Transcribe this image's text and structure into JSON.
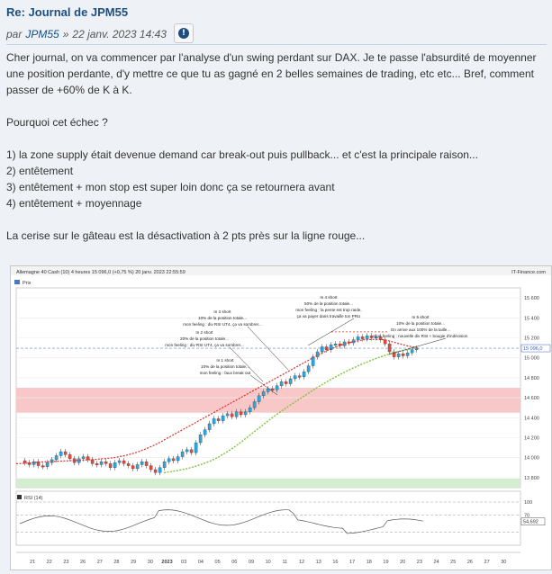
{
  "post": {
    "title": "Re: Journal de JPM55",
    "by_prefix": "par",
    "author": "JPM55",
    "date_sep": "»",
    "date": "22 janv. 2023 14:43",
    "report_icon": "info-circle-icon",
    "paragraphs": [
      "Cher journal, on va commencer par l'analyse d'un swing perdant sur DAX. Je te passe l'absurdité de moyenner une position perdante, d'y mettre ce que tu as gagné en 2 belles semaines de trading, etc etc... Bref, comment passer de +60% de K à K.",
      "Pourquoi cet échec ?",
      "1) la zone supply était devenue demand car break-out puis pullback... et c'est la principale raison...",
      "2) entêtement",
      "3) entêtement + mon stop est super loin donc ça se retournera avant",
      "4) entêtement + moyennage",
      "La cerise sur le gâteau est la désactivation à 2 pts près sur la ligne rouge..."
    ]
  },
  "chart": {
    "header_left": "Allemagne 40 Cash (10) 4 heures 15 096,0 (+0,75 %) 20 janv. 2023 22:55:59",
    "header_right": "IT-Finance.com",
    "prix_label": "Prix",
    "rsi_label": "RSI (14)",
    "price_badge": "15 096,0",
    "rsi_badge": "54,692",
    "colors": {
      "up": "#29a8e0",
      "down": "#e8483e",
      "ma_green": "#7cc43a",
      "ma_red": "#d9302a",
      "supply_zone": "#f8c8c8",
      "demand_zone": "#d4ecd0"
    },
    "annotations": [
      {
        "lines": [
          "In 1 short",
          "10% de la position totale...",
          "mon feeling : faux break out"
        ]
      },
      {
        "lines": [
          "In 2 short",
          "20% de la position totale...",
          "mon feeling : div RSI UT4, ça va sombrer..."
        ]
      },
      {
        "lines": [
          "In 3 short",
          "10% de la position totale...",
          "mon feeling : div RSI UT4, ça va sombrer..."
        ]
      },
      {
        "lines": [
          "In 4 short",
          "50% de la position totale...",
          "mon feeling : la pente est trop raide,",
          "ça va payer dans travaille ton PRU"
        ]
      },
      {
        "lines": [
          "In 5 short",
          "10% de la position totale...",
          "On arrive aux 100% de la taille...",
          "mon feeling : nouvelle div RSI + bougie d'indécision"
        ]
      }
    ]
  },
  "chart_data": {
    "type": "candlestick",
    "title": "Allemagne 40 Cash (10) 4 heures",
    "ylim": [
      13700,
      15700
    ],
    "y_ticks": [
      13800,
      14000,
      14200,
      14400,
      14600,
      14800,
      15000,
      15200,
      15400,
      15600
    ],
    "x_ticks": [
      "21",
      "22",
      "23",
      "26",
      "27",
      "28",
      "29",
      "30",
      "2023",
      "03",
      "04",
      "05",
      "06",
      "09",
      "10",
      "11",
      "12",
      "13",
      "16",
      "17",
      "18",
      "19",
      "20",
      "23",
      "24",
      "25",
      "26",
      "27",
      "30"
    ],
    "candles": [
      [
        13970,
        13950
      ],
      [
        13950,
        13930
      ],
      [
        13930,
        13960
      ],
      [
        13960,
        13920
      ],
      [
        13920,
        13910
      ],
      [
        13910,
        13950
      ],
      [
        13950,
        13980
      ],
      [
        13980,
        14020
      ],
      [
        14020,
        14060
      ],
      [
        14060,
        14030
      ],
      [
        14030,
        13990
      ],
      [
        13990,
        13950
      ],
      [
        13950,
        13990
      ],
      [
        13990,
        14010
      ],
      [
        14010,
        13980
      ],
      [
        13980,
        13940
      ],
      [
        13940,
        13930
      ],
      [
        13930,
        13960
      ],
      [
        13960,
        13940
      ],
      [
        13940,
        13900
      ],
      [
        13900,
        13950
      ],
      [
        13950,
        13970
      ],
      [
        13970,
        13940
      ],
      [
        13940,
        13920
      ],
      [
        13920,
        13890
      ],
      [
        13890,
        13930
      ],
      [
        13930,
        13960
      ],
      [
        13960,
        13920
      ],
      [
        13920,
        13880
      ],
      [
        13880,
        13850
      ],
      [
        13850,
        13900
      ],
      [
        13900,
        13960
      ],
      [
        13960,
        13990
      ],
      [
        13990,
        13970
      ],
      [
        13970,
        14010
      ],
      [
        14010,
        14060
      ],
      [
        14060,
        14080
      ],
      [
        14080,
        14050
      ],
      [
        14050,
        14150
      ],
      [
        14150,
        14230
      ],
      [
        14230,
        14280
      ],
      [
        14280,
        14340
      ],
      [
        14340,
        14390
      ],
      [
        14390,
        14370
      ],
      [
        14370,
        14420
      ],
      [
        14420,
        14440
      ],
      [
        14440,
        14410
      ],
      [
        14410,
        14460
      ],
      [
        14460,
        14430
      ],
      [
        14430,
        14460
      ],
      [
        14460,
        14500
      ],
      [
        14500,
        14560
      ],
      [
        14560,
        14620
      ],
      [
        14620,
        14660
      ],
      [
        14660,
        14690
      ],
      [
        14690,
        14680
      ],
      [
        14680,
        14720
      ],
      [
        14720,
        14760
      ],
      [
        14760,
        14740
      ],
      [
        14740,
        14790
      ],
      [
        14790,
        14820
      ],
      [
        14820,
        14810
      ],
      [
        14810,
        14860
      ],
      [
        14860,
        14920
      ],
      [
        14920,
        15010
      ],
      [
        15010,
        15060
      ],
      [
        15060,
        15110
      ],
      [
        15110,
        15080
      ],
      [
        15080,
        15130
      ],
      [
        15130,
        15140
      ],
      [
        15140,
        15120
      ],
      [
        15120,
        15160
      ],
      [
        15160,
        15150
      ],
      [
        15150,
        15180
      ],
      [
        15180,
        15210
      ],
      [
        15210,
        15190
      ],
      [
        15190,
        15220
      ],
      [
        15220,
        15200
      ],
      [
        15200,
        15210
      ],
      [
        15210,
        15180
      ],
      [
        15180,
        15140
      ],
      [
        15140,
        15060
      ],
      [
        15060,
        15010
      ],
      [
        15010,
        15040
      ],
      [
        15040,
        15020
      ],
      [
        15020,
        15050
      ],
      [
        15050,
        15080
      ],
      [
        15080,
        15096
      ]
    ],
    "ema_green": [
      13850,
      13860,
      13875,
      13890,
      13910,
      13935,
      13965,
      14000,
      14045,
      14095,
      14150,
      14210,
      14270,
      14330,
      14390,
      14445,
      14500,
      14550,
      14600,
      14650,
      14700,
      14745,
      14790,
      14830,
      14870,
      14905,
      14940,
      14970,
      15000,
      15025,
      15050,
      15070,
      15085,
      15095
    ],
    "ema_red": [
      13940,
      13945,
      13955,
      13960,
      13965,
      13970,
      13975,
      13980,
      13990,
      14000,
      14020,
      14050,
      14090,
      14140,
      14200,
      14260,
      14320,
      14380,
      14440,
      14500,
      14560,
      14620,
      14680,
      14740,
      14800,
      14860,
      14920,
      14980,
      15040,
      15090,
      15130,
      15160,
      15180,
      15185,
      15180,
      15150,
      15120,
      15100
    ],
    "supply_zone": [
      14450,
      14700
    ],
    "demand_zone": [
      13700,
      13790
    ],
    "rsi_ylim": [
      0,
      100
    ],
    "rsi_ticks": [
      70,
      100
    ],
    "rsi_last": 54.692
  }
}
